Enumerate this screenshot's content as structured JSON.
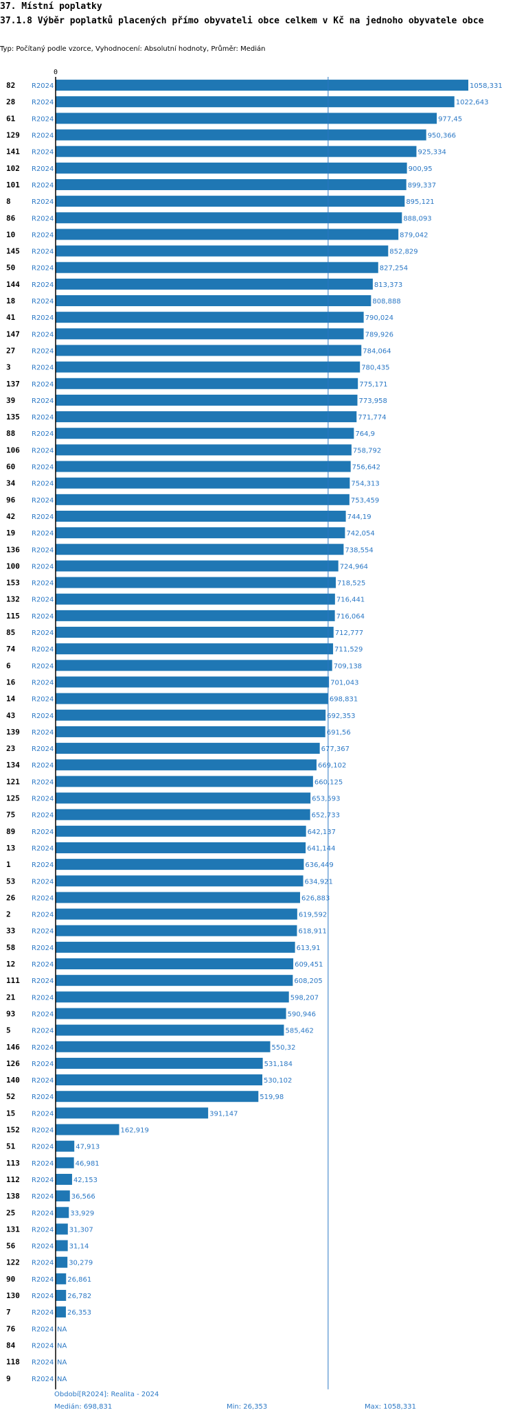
{
  "header": {
    "section_title": "37. Místní poplatky",
    "chart_title": "37.1.8 Výběr poplatků placených přímo obyvateli obce celkem  v Kč na jednoho obyvatele obce",
    "subtitle": "Typ: Počítaný podle vzorce, Vyhodnocení: Absolutní hodnoty, Průměr: Medián"
  },
  "chart_data": {
    "type": "bar",
    "orientation": "horizontal",
    "axis_zero_label": "0",
    "period_label": "R2024",
    "missing_label": "NA",
    "reference_line": 698.831,
    "xlim": [
      0,
      1058.331
    ],
    "rows": [
      {
        "id": "82",
        "value": 1058.331,
        "label": "1058,331"
      },
      {
        "id": "28",
        "value": 1022.643,
        "label": "1022,643"
      },
      {
        "id": "61",
        "value": 977.45,
        "label": "977,45"
      },
      {
        "id": "129",
        "value": 950.366,
        "label": "950,366"
      },
      {
        "id": "141",
        "value": 925.334,
        "label": "925,334"
      },
      {
        "id": "102",
        "value": 900.95,
        "label": "900,95"
      },
      {
        "id": "101",
        "value": 899.337,
        "label": "899,337"
      },
      {
        "id": "8",
        "value": 895.121,
        "label": "895,121"
      },
      {
        "id": "86",
        "value": 888.093,
        "label": "888,093"
      },
      {
        "id": "10",
        "value": 879.042,
        "label": "879,042"
      },
      {
        "id": "145",
        "value": 852.829,
        "label": "852,829"
      },
      {
        "id": "50",
        "value": 827.254,
        "label": "827,254"
      },
      {
        "id": "144",
        "value": 813.373,
        "label": "813,373"
      },
      {
        "id": "18",
        "value": 808.888,
        "label": "808,888"
      },
      {
        "id": "41",
        "value": 790.024,
        "label": "790,024"
      },
      {
        "id": "147",
        "value": 789.926,
        "label": "789,926"
      },
      {
        "id": "27",
        "value": 784.064,
        "label": "784,064"
      },
      {
        "id": "3",
        "value": 780.435,
        "label": "780,435"
      },
      {
        "id": "137",
        "value": 775.171,
        "label": "775,171"
      },
      {
        "id": "39",
        "value": 773.958,
        "label": "773,958"
      },
      {
        "id": "135",
        "value": 771.774,
        "label": "771,774"
      },
      {
        "id": "88",
        "value": 764.9,
        "label": "764,9"
      },
      {
        "id": "106",
        "value": 758.792,
        "label": "758,792"
      },
      {
        "id": "60",
        "value": 756.642,
        "label": "756,642"
      },
      {
        "id": "34",
        "value": 754.313,
        "label": "754,313"
      },
      {
        "id": "96",
        "value": 753.459,
        "label": "753,459"
      },
      {
        "id": "42",
        "value": 744.19,
        "label": "744,19"
      },
      {
        "id": "19",
        "value": 742.054,
        "label": "742,054"
      },
      {
        "id": "136",
        "value": 738.554,
        "label": "738,554"
      },
      {
        "id": "100",
        "value": 724.964,
        "label": "724,964"
      },
      {
        "id": "153",
        "value": 718.525,
        "label": "718,525"
      },
      {
        "id": "132",
        "value": 716.441,
        "label": "716,441"
      },
      {
        "id": "115",
        "value": 716.064,
        "label": "716,064"
      },
      {
        "id": "85",
        "value": 712.777,
        "label": "712,777"
      },
      {
        "id": "74",
        "value": 711.529,
        "label": "711,529"
      },
      {
        "id": "6",
        "value": 709.138,
        "label": "709,138"
      },
      {
        "id": "16",
        "value": 701.043,
        "label": "701,043"
      },
      {
        "id": "14",
        "value": 698.831,
        "label": "698,831"
      },
      {
        "id": "43",
        "value": 692.353,
        "label": "692,353"
      },
      {
        "id": "139",
        "value": 691.56,
        "label": "691,56"
      },
      {
        "id": "23",
        "value": 677.367,
        "label": "677,367"
      },
      {
        "id": "134",
        "value": 669.102,
        "label": "669,102"
      },
      {
        "id": "121",
        "value": 660.125,
        "label": "660,125"
      },
      {
        "id": "125",
        "value": 653.593,
        "label": "653,593"
      },
      {
        "id": "75",
        "value": 652.733,
        "label": "652,733"
      },
      {
        "id": "89",
        "value": 642.137,
        "label": "642,137"
      },
      {
        "id": "13",
        "value": 641.144,
        "label": "641,144"
      },
      {
        "id": "1",
        "value": 636.449,
        "label": "636,449"
      },
      {
        "id": "53",
        "value": 634.921,
        "label": "634,921"
      },
      {
        "id": "26",
        "value": 626.883,
        "label": "626,883"
      },
      {
        "id": "2",
        "value": 619.592,
        "label": "619,592"
      },
      {
        "id": "33",
        "value": 618.911,
        "label": "618,911"
      },
      {
        "id": "58",
        "value": 613.91,
        "label": "613,91"
      },
      {
        "id": "12",
        "value": 609.451,
        "label": "609,451"
      },
      {
        "id": "111",
        "value": 608.205,
        "label": "608,205"
      },
      {
        "id": "21",
        "value": 598.207,
        "label": "598,207"
      },
      {
        "id": "93",
        "value": 590.946,
        "label": "590,946"
      },
      {
        "id": "5",
        "value": 585.462,
        "label": "585,462"
      },
      {
        "id": "146",
        "value": 550.32,
        "label": "550,32"
      },
      {
        "id": "126",
        "value": 531.184,
        "label": "531,184"
      },
      {
        "id": "140",
        "value": 530.102,
        "label": "530,102"
      },
      {
        "id": "52",
        "value": 519.98,
        "label": "519,98"
      },
      {
        "id": "15",
        "value": 391.147,
        "label": "391,147"
      },
      {
        "id": "152",
        "value": 162.919,
        "label": "162,919"
      },
      {
        "id": "51",
        "value": 47.913,
        "label": "47,913"
      },
      {
        "id": "113",
        "value": 46.981,
        "label": "46,981"
      },
      {
        "id": "112",
        "value": 42.153,
        "label": "42,153"
      },
      {
        "id": "138",
        "value": 36.566,
        "label": "36,566"
      },
      {
        "id": "25",
        "value": 33.929,
        "label": "33,929"
      },
      {
        "id": "131",
        "value": 31.307,
        "label": "31,307"
      },
      {
        "id": "56",
        "value": 31.14,
        "label": "31,14"
      },
      {
        "id": "122",
        "value": 30.279,
        "label": "30,279"
      },
      {
        "id": "90",
        "value": 26.861,
        "label": "26,861"
      },
      {
        "id": "130",
        "value": 26.782,
        "label": "26,782"
      },
      {
        "id": "7",
        "value": 26.353,
        "label": "26,353"
      },
      {
        "id": "76",
        "value": null,
        "label": "NA"
      },
      {
        "id": "84",
        "value": null,
        "label": "NA"
      },
      {
        "id": "118",
        "value": null,
        "label": "NA"
      },
      {
        "id": "9",
        "value": null,
        "label": "NA"
      }
    ]
  },
  "footer": {
    "period": "Období[R2024]: Realita - 2024",
    "median": "Medián: 698,831",
    "min": "Min: 26,353",
    "max": "Max: 1058,331"
  },
  "colors": {
    "bar": "#1f77b4",
    "accent_text": "#2b78c5",
    "axis": "#000000",
    "reference_line": "#2b78c5"
  }
}
